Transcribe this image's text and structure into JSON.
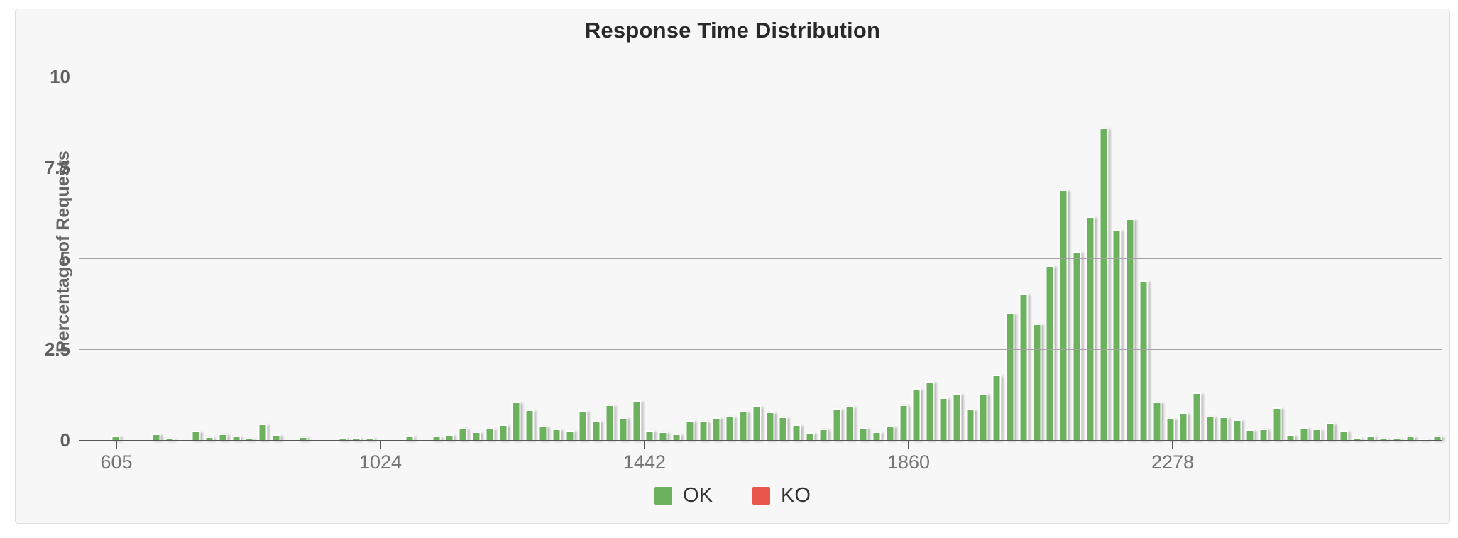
{
  "panel": {
    "title": "Response Time Distribution"
  },
  "y_axis": {
    "label": "Percentage of Requests",
    "tick_labels": [
      "10",
      "7.5",
      "5",
      "2.5",
      "0"
    ]
  },
  "x_axis": {
    "tick_labels": [
      "605",
      "1024",
      "1442",
      "1860",
      "2278"
    ]
  },
  "legend": {
    "items": [
      {
        "label": "OK",
        "color": "#6cb25e"
      },
      {
        "label": "KO",
        "color": "#e8564c"
      }
    ]
  },
  "colors": {
    "ok_bar": "#6cb25e",
    "ko_bar": "#e8564c",
    "panel_background": "#f7f7f7",
    "panel_border": "#dcdcdc",
    "gridline": "#a3a3a3",
    "axis_line": "#575757",
    "title_text": "#292929",
    "tick_text": "#747474"
  },
  "chart_data": {
    "type": "bar",
    "title": "Response Time Distribution",
    "xlabel": "",
    "ylabel": "Percentage of Requests",
    "ylim": [
      0,
      10
    ],
    "y_gridlines": [
      0,
      2.5,
      5,
      7.5,
      10
    ],
    "x_ticks": [
      605,
      1024,
      1442,
      1860,
      2278
    ],
    "x_start": 605,
    "x_step": 21,
    "legend_position": "bottom-center",
    "grid": true,
    "series": [
      {
        "name": "OK",
        "color": "#6cb25e",
        "values": [
          0.13,
          0,
          0,
          0.17,
          0.05,
          0,
          0.25,
          0.09,
          0.18,
          0.12,
          0.06,
          0.44,
          0.16,
          0,
          0.1,
          0,
          0,
          0.07,
          0.08,
          0.08,
          0,
          0,
          0.14,
          0,
          0.11,
          0.15,
          0.33,
          0.24,
          0.33,
          0.43,
          1.05,
          0.84,
          0.39,
          0.32,
          0.28,
          0.82,
          0.55,
          0.98,
          0.63,
          1.09,
          0.28,
          0.23,
          0.18,
          0.54,
          0.53,
          0.62,
          0.66,
          0.8,
          0.96,
          0.78,
          0.64,
          0.43,
          0.22,
          0.32,
          0.87,
          0.94,
          0.35,
          0.23,
          0.4,
          0.97,
          1.43,
          1.63,
          1.18,
          1.28,
          0.85,
          1.28,
          1.8,
          3.5,
          4.05,
          3.2,
          4.8,
          6.9,
          5.2,
          6.15,
          8.6,
          5.8,
          6.1,
          4.4,
          1.05,
          0.6,
          0.77,
          1.3,
          0.67,
          0.65,
          0.57,
          0.3,
          0.31,
          0.9,
          0.15,
          0.36,
          0.31,
          0.47,
          0.27,
          0.07,
          0.14,
          0.05,
          0.06,
          0.11,
          0.03,
          0.12
        ]
      },
      {
        "name": "KO",
        "color": "#e8564c",
        "values": []
      }
    ]
  }
}
